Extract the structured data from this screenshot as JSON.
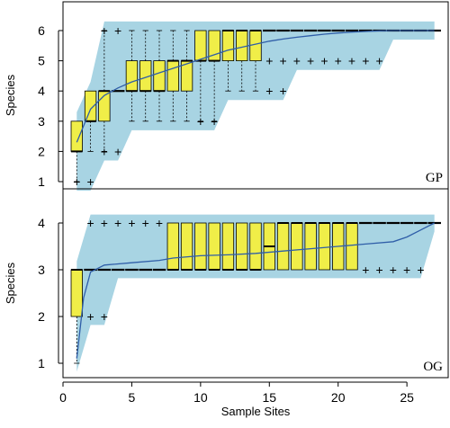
{
  "chart_data": [
    {
      "type": "box",
      "panel_label": "GP",
      "ylabel": "Species",
      "ylim": [
        1,
        6
      ],
      "yticks": [
        "1",
        "2",
        "3",
        "4",
        "5",
        "6"
      ],
      "envelope_color": "#a8d4e3",
      "box_color": "#f0ee48",
      "mean_line_color": "#2f5ea8",
      "mean_curve": [
        [
          1,
          2.3
        ],
        [
          2,
          3.4
        ],
        [
          3,
          3.85
        ],
        [
          4,
          4.1
        ],
        [
          5,
          4.3
        ],
        [
          6,
          4.45
        ],
        [
          7,
          4.6
        ],
        [
          8,
          4.75
        ],
        [
          9,
          4.9
        ],
        [
          10,
          5.05
        ],
        [
          11,
          5.2
        ],
        [
          12,
          5.35
        ],
        [
          13,
          5.45
        ],
        [
          14,
          5.55
        ],
        [
          15,
          5.65
        ],
        [
          16,
          5.72
        ],
        [
          17,
          5.78
        ],
        [
          18,
          5.83
        ],
        [
          19,
          5.88
        ],
        [
          20,
          5.92
        ],
        [
          21,
          5.95
        ],
        [
          22,
          5.97
        ],
        [
          23,
          5.99
        ],
        [
          24,
          6.0
        ],
        [
          27,
          6.0
        ]
      ],
      "boxes": [
        {
          "x": 1,
          "q1": 2,
          "median": 2,
          "q3": 3,
          "lo": 1,
          "hi": 3,
          "outliers": [
            1
          ]
        },
        {
          "x": 2,
          "q1": 3,
          "median": 3,
          "q3": 4,
          "lo": 2,
          "hi": 4,
          "outliers": [
            1
          ]
        },
        {
          "x": 3,
          "q1": 3,
          "median": 4,
          "q3": 4,
          "lo": 2,
          "hi": 6,
          "outliers": [
            6,
            2
          ]
        },
        {
          "x": 4,
          "q1": 4,
          "median": 4,
          "q3": 4,
          "lo": 2,
          "hi": 6,
          "outliers": [
            6,
            2
          ]
        },
        {
          "x": 5,
          "q1": 4,
          "median": 4,
          "q3": 5,
          "lo": 3,
          "hi": 6,
          "outliers": []
        },
        {
          "x": 6,
          "q1": 4,
          "median": 4,
          "q3": 5,
          "lo": 3,
          "hi": 6,
          "outliers": []
        },
        {
          "x": 7,
          "q1": 4,
          "median": 4,
          "q3": 5,
          "lo": 3,
          "hi": 6,
          "outliers": []
        },
        {
          "x": 8,
          "q1": 4,
          "median": 5,
          "q3": 5,
          "lo": 3,
          "hi": 6,
          "outliers": []
        },
        {
          "x": 9,
          "q1": 4,
          "median": 5,
          "q3": 5,
          "lo": 3,
          "hi": 6,
          "outliers": []
        },
        {
          "x": 10,
          "q1": 5,
          "median": 5,
          "q3": 6,
          "lo": 3,
          "hi": 6,
          "outliers": [
            3
          ]
        },
        {
          "x": 11,
          "q1": 5,
          "median": 5,
          "q3": 6,
          "lo": 3,
          "hi": 6,
          "outliers": [
            3
          ]
        },
        {
          "x": 12,
          "q1": 5,
          "median": 6,
          "q3": 6,
          "lo": 4,
          "hi": 6,
          "outliers": []
        },
        {
          "x": 13,
          "q1": 5,
          "median": 6,
          "q3": 6,
          "lo": 4,
          "hi": 6,
          "outliers": []
        },
        {
          "x": 14,
          "q1": 5,
          "median": 6,
          "q3": 6,
          "lo": 4,
          "hi": 6,
          "outliers": []
        },
        {
          "x": 15,
          "q1": 6,
          "median": 6,
          "q3": 6,
          "lo": 6,
          "hi": 6,
          "outliers": [
            5,
            4
          ]
        },
        {
          "x": 16,
          "q1": 6,
          "median": 6,
          "q3": 6,
          "lo": 6,
          "hi": 6,
          "outliers": [
            5,
            4
          ]
        },
        {
          "x": 17,
          "q1": 6,
          "median": 6,
          "q3": 6,
          "lo": 6,
          "hi": 6,
          "outliers": [
            5
          ]
        },
        {
          "x": 18,
          "q1": 6,
          "median": 6,
          "q3": 6,
          "lo": 6,
          "hi": 6,
          "outliers": [
            5
          ]
        },
        {
          "x": 19,
          "q1": 6,
          "median": 6,
          "q3": 6,
          "lo": 6,
          "hi": 6,
          "outliers": [
            5
          ]
        },
        {
          "x": 20,
          "q1": 6,
          "median": 6,
          "q3": 6,
          "lo": 6,
          "hi": 6,
          "outliers": [
            5
          ]
        },
        {
          "x": 21,
          "q1": 6,
          "median": 6,
          "q3": 6,
          "lo": 6,
          "hi": 6,
          "outliers": [
            5
          ]
        },
        {
          "x": 22,
          "q1": 6,
          "median": 6,
          "q3": 6,
          "lo": 6,
          "hi": 6,
          "outliers": [
            5
          ]
        },
        {
          "x": 23,
          "q1": 6,
          "median": 6,
          "q3": 6,
          "lo": 6,
          "hi": 6,
          "outliers": [
            5
          ]
        },
        {
          "x": 24,
          "q1": 6,
          "median": 6,
          "q3": 6,
          "lo": 6,
          "hi": 6,
          "outliers": []
        },
        {
          "x": 25,
          "q1": 6,
          "median": 6,
          "q3": 6,
          "lo": 6,
          "hi": 6,
          "outliers": []
        },
        {
          "x": 26,
          "q1": 6,
          "median": 6,
          "q3": 6,
          "lo": 6,
          "hi": 6,
          "outliers": []
        },
        {
          "x": 27,
          "q1": 6,
          "median": 6,
          "q3": 6,
          "lo": 6,
          "hi": 6,
          "outliers": []
        }
      ]
    },
    {
      "type": "box",
      "panel_label": "OG",
      "xlabel": "Sample Sites",
      "ylabel": "Species",
      "xlim": [
        0,
        28
      ],
      "xticks": [
        "0",
        "5",
        "10",
        "15",
        "20",
        "25"
      ],
      "ylim": [
        1,
        4
      ],
      "yticks": [
        "1",
        "2",
        "3",
        "4"
      ],
      "envelope_color": "#a8d4e3",
      "box_color": "#f0ee48",
      "mean_line_color": "#2f5ea8",
      "mean_curve": [
        [
          1,
          1.1
        ],
        [
          1.5,
          2.4
        ],
        [
          2,
          2.95
        ],
        [
          3,
          3.1
        ],
        [
          5,
          3.15
        ],
        [
          7,
          3.2
        ],
        [
          8,
          3.25
        ],
        [
          10,
          3.3
        ],
        [
          12,
          3.32
        ],
        [
          14,
          3.35
        ],
        [
          16,
          3.4
        ],
        [
          18,
          3.45
        ],
        [
          20,
          3.5
        ],
        [
          22,
          3.55
        ],
        [
          24,
          3.6
        ],
        [
          25,
          3.7
        ],
        [
          26,
          3.85
        ],
        [
          27,
          4.0
        ]
      ],
      "boxes": [
        {
          "x": 1,
          "q1": 2,
          "median": 3,
          "q3": 3,
          "lo": 1,
          "hi": 3,
          "outliers": []
        },
        {
          "x": 2,
          "q1": 3,
          "median": 3,
          "q3": 3,
          "lo": 3,
          "hi": 3,
          "outliers": [
            4,
            2
          ]
        },
        {
          "x": 3,
          "q1": 3,
          "median": 3,
          "q3": 3,
          "lo": 3,
          "hi": 3,
          "outliers": [
            4,
            2
          ]
        },
        {
          "x": 4,
          "q1": 3,
          "median": 3,
          "q3": 3,
          "lo": 3,
          "hi": 3,
          "outliers": [
            4
          ]
        },
        {
          "x": 5,
          "q1": 3,
          "median": 3,
          "q3": 3,
          "lo": 3,
          "hi": 3,
          "outliers": [
            4
          ]
        },
        {
          "x": 6,
          "q1": 3,
          "median": 3,
          "q3": 3,
          "lo": 3,
          "hi": 3,
          "outliers": [
            4
          ]
        },
        {
          "x": 7,
          "q1": 3,
          "median": 3,
          "q3": 3,
          "lo": 3,
          "hi": 3,
          "outliers": [
            4
          ]
        },
        {
          "x": 8,
          "q1": 3,
          "median": 3,
          "q3": 4,
          "lo": 3,
          "hi": 4,
          "outliers": []
        },
        {
          "x": 9,
          "q1": 3,
          "median": 3,
          "q3": 4,
          "lo": 3,
          "hi": 4,
          "outliers": []
        },
        {
          "x": 10,
          "q1": 3,
          "median": 3,
          "q3": 4,
          "lo": 3,
          "hi": 4,
          "outliers": []
        },
        {
          "x": 11,
          "q1": 3,
          "median": 3,
          "q3": 4,
          "lo": 3,
          "hi": 4,
          "outliers": []
        },
        {
          "x": 12,
          "q1": 3,
          "median": 3,
          "q3": 4,
          "lo": 3,
          "hi": 4,
          "outliers": []
        },
        {
          "x": 13,
          "q1": 3,
          "median": 3,
          "q3": 4,
          "lo": 3,
          "hi": 4,
          "outliers": []
        },
        {
          "x": 14,
          "q1": 3,
          "median": 3,
          "q3": 4,
          "lo": 3,
          "hi": 4,
          "outliers": []
        },
        {
          "x": 15,
          "q1": 3,
          "median": 3.5,
          "q3": 4,
          "lo": 3,
          "hi": 4,
          "outliers": []
        },
        {
          "x": 16,
          "q1": 3,
          "median": 4,
          "q3": 4,
          "lo": 3,
          "hi": 4,
          "outliers": []
        },
        {
          "x": 17,
          "q1": 3,
          "median": 4,
          "q3": 4,
          "lo": 3,
          "hi": 4,
          "outliers": []
        },
        {
          "x": 18,
          "q1": 3,
          "median": 4,
          "q3": 4,
          "lo": 3,
          "hi": 4,
          "outliers": []
        },
        {
          "x": 19,
          "q1": 3,
          "median": 4,
          "q3": 4,
          "lo": 3,
          "hi": 4,
          "outliers": []
        },
        {
          "x": 20,
          "q1": 3,
          "median": 4,
          "q3": 4,
          "lo": 3,
          "hi": 4,
          "outliers": []
        },
        {
          "x": 21,
          "q1": 3,
          "median": 4,
          "q3": 4,
          "lo": 3,
          "hi": 4,
          "outliers": []
        },
        {
          "x": 22,
          "q1": 4,
          "median": 4,
          "q3": 4,
          "lo": 4,
          "hi": 4,
          "outliers": [
            3
          ]
        },
        {
          "x": 23,
          "q1": 4,
          "median": 4,
          "q3": 4,
          "lo": 4,
          "hi": 4,
          "outliers": [
            3
          ]
        },
        {
          "x": 24,
          "q1": 4,
          "median": 4,
          "q3": 4,
          "lo": 4,
          "hi": 4,
          "outliers": [
            3
          ]
        },
        {
          "x": 25,
          "q1": 4,
          "median": 4,
          "q3": 4,
          "lo": 4,
          "hi": 4,
          "outliers": [
            3
          ]
        },
        {
          "x": 26,
          "q1": 4,
          "median": 4,
          "q3": 4,
          "lo": 4,
          "hi": 4,
          "outliers": [
            3
          ]
        },
        {
          "x": 27,
          "q1": 4,
          "median": 4,
          "q3": 4,
          "lo": 4,
          "hi": 4,
          "outliers": []
        }
      ]
    }
  ]
}
